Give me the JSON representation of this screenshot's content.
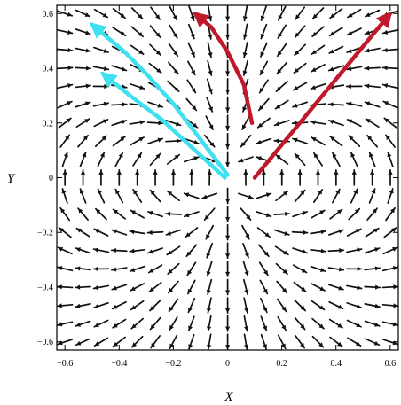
{
  "chart_data": {
    "type": "vector-field",
    "xlabel": "X",
    "ylabel": "Y",
    "xlim": [
      -0.63,
      0.63
    ],
    "ylim": [
      -0.63,
      0.63
    ],
    "x_ticks": [
      -0.6,
      -0.4,
      -0.2,
      0,
      0.2,
      0.4,
      0.6
    ],
    "y_ticks": [
      -0.6,
      -0.4,
      -0.2,
      0,
      0.2,
      0.4,
      0.6
    ],
    "x_tick_labels": [
      "−0.6",
      "−0.4",
      "−0.2",
      "0",
      "0.2",
      "0.4",
      "0.6"
    ],
    "y_tick_labels": [
      "−0.6",
      "−0.4",
      "−0.2",
      "0",
      "0.2",
      "0.4",
      "0.6"
    ],
    "field": {
      "grid": {
        "x_start": -0.6,
        "x_step": 0.0667,
        "x_count": 19,
        "y_start": -0.6,
        "y_step": 0.0667,
        "y_count": 19
      },
      "dipole_center": [
        0,
        0
      ],
      "arrow_color": "#111111"
    },
    "trajectories": [
      {
        "color": "#c0192b",
        "points": [
          [
            0.1,
            0.0
          ],
          [
            0.6,
            0.6
          ]
        ]
      },
      {
        "color": "#c0192b",
        "points": [
          [
            0.09,
            0.2
          ],
          [
            0.06,
            0.34
          ],
          [
            0.0,
            0.46
          ],
          [
            -0.06,
            0.55
          ],
          [
            -0.12,
            0.6
          ]
        ]
      },
      {
        "color": "#3fe0f0",
        "points": [
          [
            -0.01,
            0.0
          ],
          [
            -0.12,
            0.1
          ],
          [
            -0.24,
            0.21
          ],
          [
            -0.36,
            0.3
          ],
          [
            -0.46,
            0.38
          ]
        ]
      },
      {
        "color": "#3fe0f0",
        "points": [
          [
            0.0,
            0.01
          ],
          [
            -0.1,
            0.14
          ],
          [
            -0.2,
            0.27
          ],
          [
            -0.3,
            0.38
          ],
          [
            -0.38,
            0.46
          ],
          [
            -0.5,
            0.56
          ]
        ]
      }
    ]
  }
}
